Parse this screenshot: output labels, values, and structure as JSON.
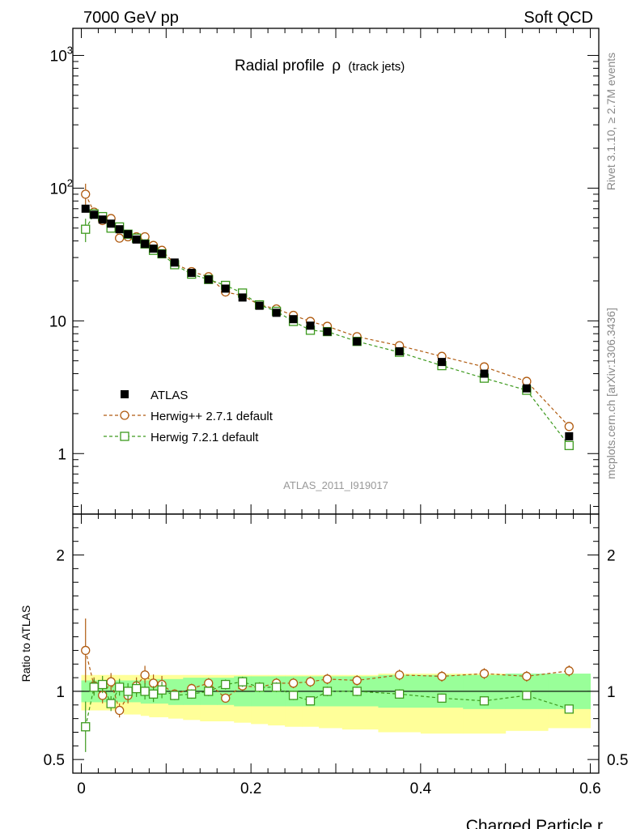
{
  "header": {
    "left": "7000 GeV pp",
    "right": "Soft QCD"
  },
  "side": {
    "rivet": "Rivet 3.1.10, ≥ 2.7M events",
    "mcplots": "mcplots.cern.ch [arXiv:1306.3436]"
  },
  "chart_data": {
    "type": "scatter",
    "title_main": "Radial profile",
    "title_symbol": "ρ",
    "title_sub": "(track jets)",
    "analysis_id": "ATLAS_2011_I919017",
    "xlabel": "Charged Particle r",
    "ylabel": "",
    "ratio_ylabel": "Ratio to ATLAS",
    "xlim": [
      -0.01,
      0.61
    ],
    "ylim": [
      0.35,
      1600
    ],
    "yscale": "log",
    "ratio_ylim": [
      0.4,
      2.3
    ],
    "x_ticks": [
      "0",
      "0.2",
      "0.4",
      "0.6"
    ],
    "x_tick_values": [
      0,
      0.2,
      0.4,
      0.6
    ],
    "y_ticks_main": [
      {
        "value": 1000,
        "base": "10",
        "exp": "3"
      },
      {
        "value": 100,
        "base": "10",
        "exp": "2"
      },
      {
        "value": 10,
        "base": "10",
        "exp": ""
      },
      {
        "value": 1,
        "base": "1",
        "exp": ""
      }
    ],
    "y_ticks_ratio": [
      {
        "value": 2,
        "label": "2"
      },
      {
        "value": 1,
        "label": "1"
      },
      {
        "value": 0.5,
        "label": "0.5"
      }
    ],
    "legend_position": "bottom-left",
    "x": [
      0.005,
      0.015,
      0.025,
      0.035,
      0.045,
      0.055,
      0.065,
      0.075,
      0.085,
      0.095,
      0.11,
      0.13,
      0.15,
      0.17,
      0.19,
      0.21,
      0.23,
      0.25,
      0.27,
      0.29,
      0.325,
      0.375,
      0.425,
      0.475,
      0.525,
      0.575
    ],
    "series": [
      {
        "name": "ATLAS",
        "color": "#000000",
        "marker": "filled-square",
        "values": [
          70,
          63,
          58,
          54,
          49,
          45,
          41,
          38,
          35,
          32,
          27.5,
          23,
          20.5,
          17.5,
          15,
          13,
          11.5,
          10.3,
          9.2,
          8.3,
          7.0,
          5.9,
          4.9,
          4.0,
          3.1,
          1.35
        ]
      },
      {
        "name": "Herwig++ 2.7.1 default",
        "color": "#b05b10",
        "marker": "open-circle",
        "values": [
          90,
          66,
          57,
          59,
          42,
          43,
          43,
          43,
          37,
          34,
          27,
          23.5,
          21.5,
          16.5,
          15.5,
          13.2,
          12.3,
          11,
          9.9,
          9.1,
          7.6,
          6.5,
          5.4,
          4.5,
          3.5,
          1.6
        ]
      },
      {
        "name": "Herwig 7.2.1 default",
        "color": "#3d9a1e",
        "marker": "open-square",
        "values": [
          49,
          64,
          61,
          50,
          51,
          45,
          42,
          38,
          34,
          32,
          26.5,
          22.5,
          20.5,
          18.5,
          16.2,
          13.2,
          11.8,
          9.9,
          8.5,
          8.3,
          7.0,
          5.8,
          4.6,
          3.7,
          3.0,
          1.15
        ]
      }
    ],
    "ratio_series": [
      {
        "name": "Herwig++ 2.7.1 default",
        "color": "#b05b10",
        "values": [
          1.3,
          1.04,
          0.97,
          1.07,
          0.86,
          0.97,
          1.04,
          1.12,
          1.06,
          1.05,
          0.98,
          1.02,
          1.06,
          0.95,
          1.04,
          1.03,
          1.06,
          1.06,
          1.07,
          1.09,
          1.08,
          1.12,
          1.11,
          1.13,
          1.11,
          1.15
        ]
      },
      {
        "name": "Herwig 7.2.1 default",
        "color": "#3d9a1e",
        "values": [
          0.74,
          1.03,
          1.05,
          0.91,
          1.03,
          1.0,
          1.02,
          1.0,
          0.98,
          1.01,
          0.97,
          0.98,
          1.0,
          1.05,
          1.07,
          1.03,
          1.03,
          0.97,
          0.93,
          1.0,
          1.0,
          0.98,
          0.95,
          0.93,
          0.97,
          0.87
        ]
      }
    ],
    "yellow_band": {
      "low": [
        0.86,
        0.86,
        0.86,
        0.86,
        0.84,
        0.83,
        0.83,
        0.82,
        0.81,
        0.81,
        0.8,
        0.79,
        0.78,
        0.78,
        0.77,
        0.76,
        0.75,
        0.74,
        0.74,
        0.73,
        0.72,
        0.7,
        0.69,
        0.69,
        0.71,
        0.73
      ],
      "high": [
        1.12,
        1.12,
        1.12,
        1.12,
        1.12,
        1.12,
        1.12,
        1.12,
        1.12,
        1.12,
        1.12,
        1.12,
        1.12,
        1.12,
        1.12,
        1.12,
        1.12,
        1.12,
        1.12,
        1.12,
        1.12,
        1.13,
        1.13,
        1.13,
        1.12,
        1.12
      ]
    },
    "green_band": {
      "low": [
        0.92,
        0.92,
        0.92,
        0.92,
        0.92,
        0.92,
        0.92,
        0.91,
        0.91,
        0.91,
        0.9,
        0.9,
        0.9,
        0.9,
        0.89,
        0.89,
        0.89,
        0.89,
        0.89,
        0.89,
        0.89,
        0.88,
        0.88,
        0.87,
        0.87,
        0.87
      ],
      "high": [
        1.08,
        1.08,
        1.08,
        1.08,
        1.08,
        1.08,
        1.08,
        1.08,
        1.09,
        1.09,
        1.09,
        1.1,
        1.1,
        1.1,
        1.11,
        1.11,
        1.11,
        1.11,
        1.11,
        1.11,
        1.11,
        1.12,
        1.12,
        1.12,
        1.13,
        1.13
      ]
    }
  }
}
